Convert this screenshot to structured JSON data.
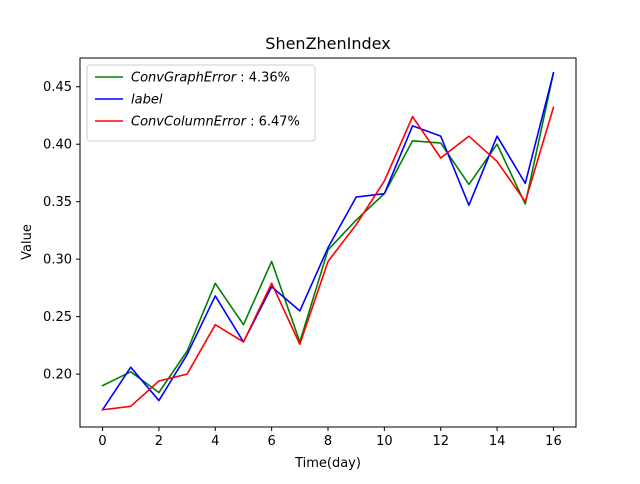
{
  "chart_data": {
    "type": "line",
    "title": "ShenZhenIndex",
    "xlabel": "Time(day)",
    "ylabel": "Value",
    "xlim": [
      -0.8,
      16.8
    ],
    "ylim": [
      0.154,
      0.475
    ],
    "x_ticks": [
      0,
      2,
      4,
      6,
      8,
      10,
      12,
      14,
      16
    ],
    "y_ticks": [
      0.2,
      0.25,
      0.3,
      0.35,
      0.4,
      0.45
    ],
    "y_tick_labels": [
      "0.20",
      "0.25",
      "0.30",
      "0.35",
      "0.40",
      "0.45"
    ],
    "grid": false,
    "legend_position": "top-left",
    "x": [
      0,
      1,
      2,
      3,
      4,
      5,
      6,
      7,
      8,
      9,
      10,
      11,
      12,
      13,
      14,
      15,
      16
    ],
    "series": [
      {
        "name": "ConvGraphError : 4.36%",
        "legend_italic": "ConvGraphError",
        "legend_plain": " : 4.36%",
        "color": "#008000",
        "values": [
          0.19,
          0.202,
          0.184,
          0.22,
          0.279,
          0.243,
          0.298,
          0.228,
          0.308,
          0.334,
          0.357,
          0.403,
          0.401,
          0.365,
          0.4,
          0.348,
          0.462
        ]
      },
      {
        "name": "label",
        "legend_italic": "label",
        "legend_plain": "",
        "color": "#0000ff",
        "values": [
          0.169,
          0.206,
          0.177,
          0.217,
          0.268,
          0.228,
          0.276,
          0.255,
          0.31,
          0.354,
          0.357,
          0.416,
          0.407,
          0.347,
          0.407,
          0.366,
          0.462
        ]
      },
      {
        "name": "ConvColumnError : 6.47%",
        "legend_italic": "ConvColumnError",
        "legend_plain": " : 6.47%",
        "color": "#ff0000",
        "values": [
          0.169,
          0.172,
          0.194,
          0.2,
          0.243,
          0.228,
          0.279,
          0.226,
          0.298,
          0.33,
          0.368,
          0.424,
          0.388,
          0.407,
          0.385,
          0.35,
          0.432
        ]
      }
    ]
  }
}
